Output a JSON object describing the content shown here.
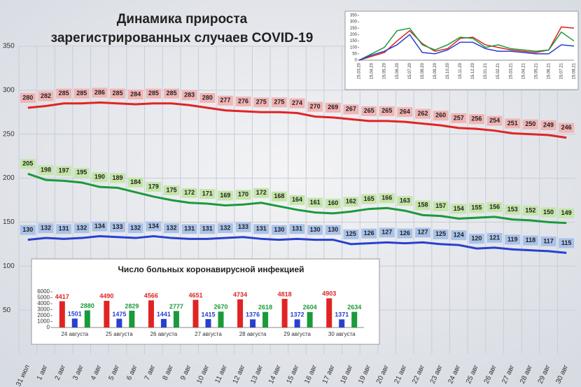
{
  "chart_data": [
    {
      "type": "line",
      "title": [
        "Динамика прироста",
        "зарегистрированных случаев COVID-19"
      ],
      "categories": [
        "31 июл",
        "1 авг",
        "2 авг",
        "3 авг",
        "4 авг",
        "5 авг",
        "6 авг",
        "7 авг",
        "8 авг",
        "9 авг",
        "10 авг",
        "11 авг",
        "12 авг",
        "13 авг",
        "14 авг",
        "15 авг",
        "16 авг",
        "17 авг",
        "18 авг",
        "19 авг",
        "20 авг",
        "21 авг",
        "22 авг",
        "23 авг",
        "24 авг",
        "25 авг",
        "26 авг",
        "27 авг",
        "28 авг",
        "29 авг",
        "30 авг"
      ],
      "series": [
        {
          "color": "#e02424",
          "values": [
            280,
            282,
            285,
            285,
            286,
            285,
            284,
            285,
            285,
            283,
            280,
            277,
            276,
            275,
            275,
            274,
            270,
            269,
            267,
            265,
            265,
            264,
            262,
            260,
            257,
            256,
            254,
            251,
            250,
            249,
            246
          ]
        },
        {
          "color": "#1a9a3a",
          "values": [
            205,
            198,
            197,
            195,
            190,
            189,
            184,
            179,
            175,
            172,
            171,
            169,
            170,
            172,
            168,
            164,
            161,
            160,
            162,
            165,
            166,
            163,
            158,
            157,
            154,
            155,
            156,
            153,
            152,
            150,
            149
          ]
        },
        {
          "color": "#2840d0",
          "values": [
            130,
            132,
            131,
            132,
            134,
            133,
            132,
            134,
            132,
            131,
            131,
            132,
            133,
            131,
            130,
            131,
            130,
            130,
            125,
            126,
            127,
            126,
            127,
            125,
            124,
            120,
            121,
            119,
            118,
            117,
            115
          ]
        }
      ],
      "ylim": [
        0,
        350
      ],
      "yticks": [
        50,
        100,
        150,
        200,
        250,
        300,
        350
      ],
      "grid": true
    },
    {
      "type": "bar",
      "title": "Число больных коронавирусной  инфекцией",
      "categories": [
        "24 августа",
        "25 августа",
        "26 августа",
        "27 августа",
        "28 августа",
        "29 августа",
        "30 августа"
      ],
      "series": [
        {
          "color": "#e02424",
          "values": [
            4417,
            4490,
            4566,
            4651,
            4734,
            4818,
            4903
          ]
        },
        {
          "color": "#2840d0",
          "values": [
            1501,
            1475,
            1441,
            1415,
            1376,
            1372,
            1371
          ]
        },
        {
          "color": "#1a9a3a",
          "values": [
            2880,
            2829,
            2777,
            2670,
            2618,
            2604,
            2634
          ]
        }
      ],
      "ylim": [
        0,
        6000
      ],
      "yticks": [
        0,
        1000,
        2000,
        3000,
        4000,
        5000,
        6000
      ]
    },
    {
      "type": "line",
      "categories": [
        "15.03.20",
        "15.04.20",
        "15.05.20",
        "15.06.20",
        "15.07.20",
        "15.08.20",
        "15.09.20",
        "15.10.20",
        "15.11.20",
        "15.12.20",
        "15.01.21",
        "15.02.21",
        "15.03.21",
        "15.04.21",
        "15.05.21",
        "15.06.21",
        "15.07.21",
        "15.08.21"
      ],
      "series": [
        {
          "color": "#e02424",
          "values": [
            0,
            30,
            60,
            150,
            230,
            130,
            70,
            90,
            170,
            180,
            120,
            100,
            80,
            70,
            60,
            80,
            260,
            250
          ]
        },
        {
          "color": "#1a9a3a",
          "values": [
            0,
            50,
            100,
            230,
            250,
            120,
            80,
            120,
            180,
            170,
            100,
            120,
            90,
            80,
            70,
            80,
            220,
            150
          ]
        },
        {
          "color": "#2840d0",
          "values": [
            0,
            40,
            70,
            120,
            200,
            60,
            50,
            80,
            140,
            140,
            90,
            70,
            70,
            60,
            50,
            50,
            120,
            110
          ]
        }
      ],
      "ylim": [
        0,
        350
      ],
      "yticks": [
        0,
        50,
        100,
        150,
        200,
        250,
        300,
        350
      ]
    }
  ]
}
